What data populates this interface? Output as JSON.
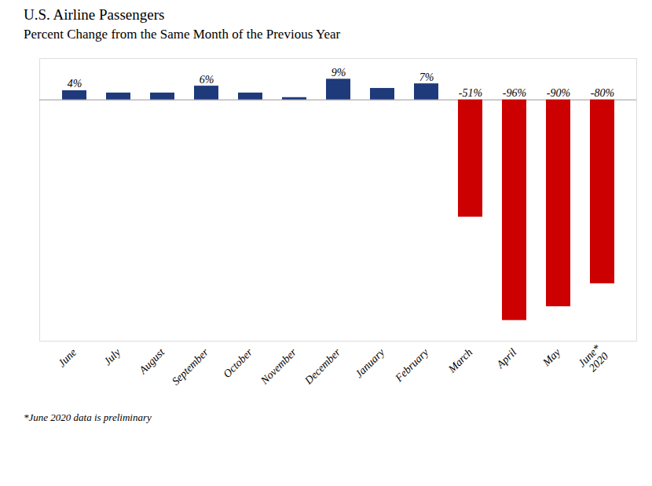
{
  "chart_data": {
    "type": "bar",
    "title": "U.S. Airline Passengers",
    "subtitle": "Percent Change from the Same Month of the Previous Year",
    "caption": "*June 2020 data is preliminary",
    "categories": [
      "June",
      "July",
      "August",
      "September",
      "October",
      "November",
      "December",
      "January",
      "February",
      "March",
      "April",
      "May",
      "June*\n2020"
    ],
    "values": [
      4,
      3,
      3,
      6,
      3,
      1,
      9,
      5,
      7,
      -51,
      -96,
      -90,
      -80
    ],
    "value_labels": [
      "4%",
      null,
      null,
      "6%",
      null,
      null,
      "9%",
      null,
      "7%",
      "-51%",
      "-96%",
      "-90%",
      "-80%"
    ],
    "colors": [
      "#1f3a7a",
      "#1f3a7a",
      "#1f3a7a",
      "#1f3a7a",
      "#1f3a7a",
      "#1f3a7a",
      "#1f3a7a",
      "#1f3a7a",
      "#1f3a7a",
      "#cc0000",
      "#cc0000",
      "#cc0000",
      "#cc0000"
    ],
    "ylim": [
      -105,
      18
    ],
    "tick_labels": "x",
    "grid": false
  }
}
